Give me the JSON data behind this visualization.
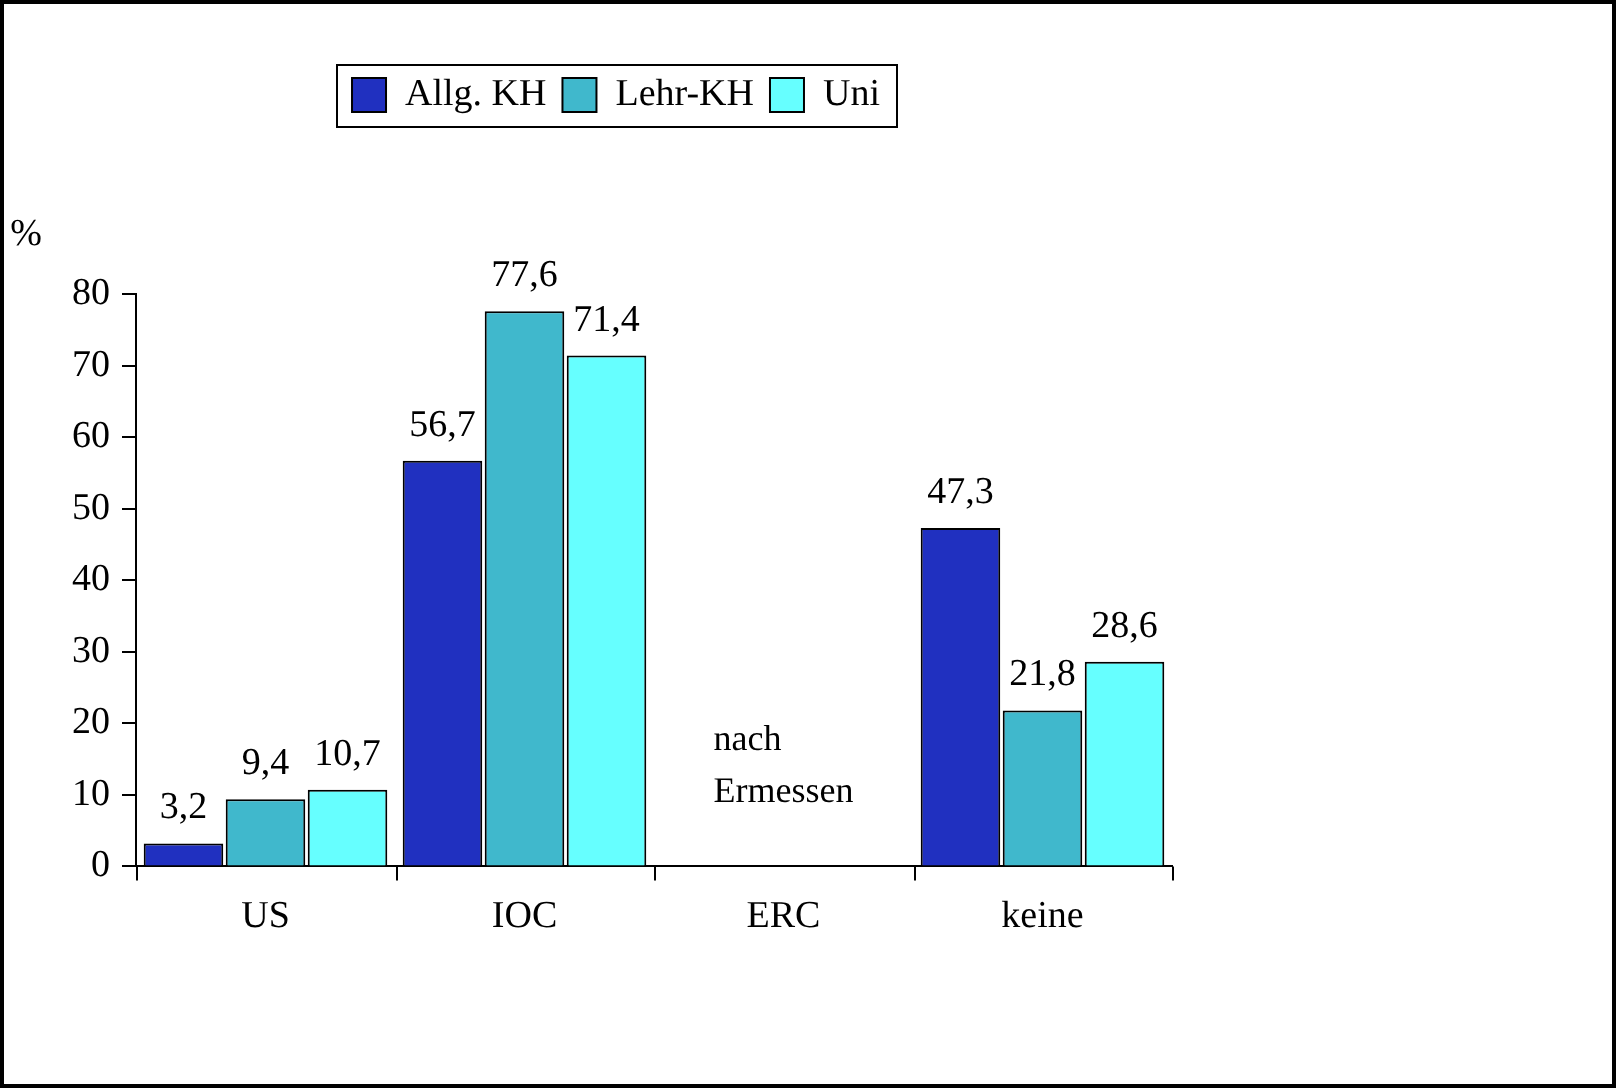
{
  "chart_data": {
    "type": "bar",
    "ylabel": "%",
    "categories": [
      "US",
      "IOC",
      "ERC",
      "keine"
    ],
    "series": [
      {
        "name": "Allg. KH",
        "color": "#2030c0",
        "values": [
          3.2,
          56.7,
          null,
          47.3
        ],
        "value_labels": [
          "3,2",
          "56,7",
          null,
          "47,3"
        ]
      },
      {
        "name": "Lehr-KH",
        "color": "#40b8cc",
        "values": [
          9.4,
          77.6,
          null,
          21.8
        ],
        "value_labels": [
          "9,4",
          "77,6",
          null,
          "21,8"
        ]
      },
      {
        "name": "Uni",
        "color": "#66ffff",
        "values": [
          10.7,
          71.4,
          null,
          28.6
        ],
        "value_labels": [
          "10,7",
          "71,4",
          null,
          "28,6"
        ]
      }
    ],
    "ylim": [
      0,
      80
    ],
    "yticks": [
      0,
      10,
      20,
      30,
      40,
      50,
      60,
      70,
      80
    ],
    "grid": false,
    "legend": "top",
    "annotations": [
      "nach\nErmessen"
    ]
  }
}
